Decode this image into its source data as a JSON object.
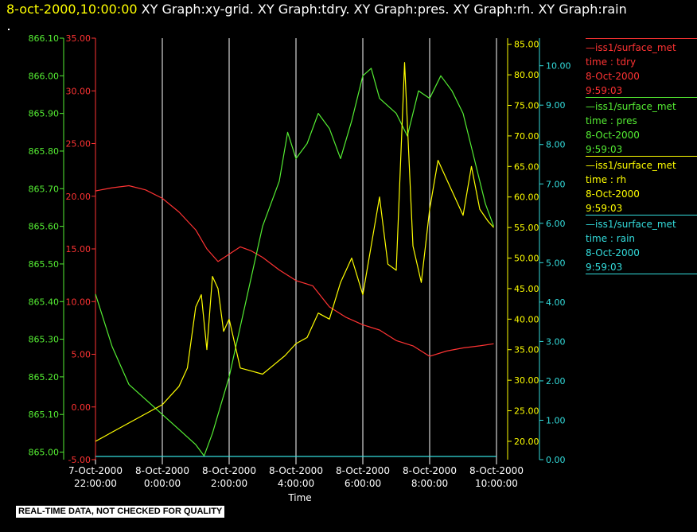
{
  "title": {
    "timestamp": "8-oct-2000,10:00:00",
    "graphs": "XY Graph:xy-grid.  XY Graph:tdry.  XY Graph:pres.  XY Graph:rh.  XY Graph:rain"
  },
  "disclaimer": "REAL-TIME DATA, NOT CHECKED FOR QUALITY",
  "legend": [
    {
      "source": "—iss1/surface_met",
      "var": "time : tdry",
      "date": "8-Oct-2000",
      "time": "9:59:03",
      "color": "#ff3333"
    },
    {
      "source": "—iss1/surface_met",
      "var": "time : pres",
      "date": "8-Oct-2000",
      "time": "9:59:03",
      "color": "#55ee33"
    },
    {
      "source": "—iss1/surface_met",
      "var": "time : rh",
      "date": "8-Oct-2000",
      "time": "9:59:03",
      "color": "#ffff00"
    },
    {
      "source": "—iss1/surface_met",
      "var": "time : rain",
      "date": "8-Oct-2000",
      "time": "9:59:03",
      "color": "#33dddd"
    }
  ],
  "chart_data": {
    "type": "line",
    "xlabel": "Time",
    "x_ticks": [
      [
        "7-Oct-2000",
        "22:00:00"
      ],
      [
        "8-Oct-2000",
        "0:00:00"
      ],
      [
        "8-Oct-2000",
        "2:00:00"
      ],
      [
        "8-Oct-2000",
        "4:00:00"
      ],
      [
        "8-Oct-2000",
        "6:00:00"
      ],
      [
        "8-Oct-2000",
        "8:00:00"
      ],
      [
        "8-Oct-2000",
        "10:00:00"
      ]
    ],
    "xlim": [
      "7-Oct-2000 22:00:00",
      "8-Oct-2000 10:00:00"
    ],
    "grid": "vertical",
    "axes": {
      "pres": {
        "ylim": [
          864.98,
          866.1
        ],
        "ticks": [
          "865.00",
          "865.10",
          "865.20",
          "865.30",
          "865.40",
          "865.50",
          "865.60",
          "865.70",
          "865.80",
          "865.90",
          "866.00",
          "866.10"
        ],
        "color": "#55ee33"
      },
      "tdry": {
        "ylim": [
          -5,
          35
        ],
        "ticks": [
          "-5.00",
          "0.00",
          "5.00",
          "10.00",
          "15.00",
          "20.00",
          "25.00",
          "30.00",
          "35.00"
        ],
        "color": "#ff3333"
      },
      "rh": {
        "ylim": [
          17,
          86
        ],
        "ticks": [
          "20.00",
          "25.00",
          "30.00",
          "35.00",
          "40.00",
          "45.00",
          "50.00",
          "55.00",
          "60.00",
          "65.00",
          "70.00",
          "75.00",
          "80.00",
          "85.00"
        ],
        "color": "#ffff00"
      },
      "rain": {
        "ylim": [
          0,
          10.7
        ],
        "ticks": [
          "0.00",
          "1.00",
          "2.00",
          "3.00",
          "4.00",
          "5.00",
          "6.00",
          "7.00",
          "8.00",
          "9.00",
          "10.00"
        ],
        "color": "#33dddd"
      }
    },
    "series": [
      {
        "name": "tdry",
        "axis": "tdry",
        "color": "#ff3333",
        "x": [
          "7-Oct-2000 22:00",
          "7-Oct-2000 22:30",
          "7-Oct-2000 23:00",
          "7-Oct-2000 23:30",
          "8-Oct-2000 0:00",
          "8-Oct-2000 0:30",
          "8-Oct-2000 1:00",
          "8-Oct-2000 1:20",
          "8-Oct-2000 1:40",
          "8-Oct-2000 2:00",
          "8-Oct-2000 2:20",
          "8-Oct-2000 2:40",
          "8-Oct-2000 3:00",
          "8-Oct-2000 3:30",
          "8-Oct-2000 4:00",
          "8-Oct-2000 4:30",
          "8-Oct-2000 5:00",
          "8-Oct-2000 5:30",
          "8-Oct-2000 6:00",
          "8-Oct-2000 6:30",
          "8-Oct-2000 7:00",
          "8-Oct-2000 7:30",
          "8-Oct-2000 8:00",
          "8-Oct-2000 8:30",
          "8-Oct-2000 9:00",
          "8-Oct-2000 9:30",
          "8-Oct-2000 9:55"
        ],
        "y": [
          20.5,
          20.8,
          21.0,
          20.6,
          19.8,
          18.5,
          16.8,
          15.0,
          13.8,
          14.5,
          15.2,
          14.8,
          14.2,
          13.0,
          12.0,
          11.5,
          9.5,
          8.5,
          7.8,
          7.3,
          6.3,
          5.8,
          4.8,
          5.3,
          5.6,
          5.8,
          6.0
        ]
      },
      {
        "name": "pres",
        "axis": "pres",
        "color": "#55ee33",
        "x": [
          "7-Oct-2000 22:00",
          "7-Oct-2000 22:15",
          "7-Oct-2000 22:30",
          "7-Oct-2000 23:00",
          "7-Oct-2000 23:30",
          "8-Oct-2000 0:00",
          "8-Oct-2000 0:30",
          "8-Oct-2000 1:00",
          "8-Oct-2000 1:15",
          "8-Oct-2000 1:30",
          "8-Oct-2000 2:00",
          "8-Oct-2000 2:30",
          "8-Oct-2000 3:00",
          "8-Oct-2000 3:30",
          "8-Oct-2000 3:45",
          "8-Oct-2000 4:00",
          "8-Oct-2000 4:20",
          "8-Oct-2000 4:40",
          "8-Oct-2000 5:00",
          "8-Oct-2000 5:20",
          "8-Oct-2000 5:40",
          "8-Oct-2000 6:00",
          "8-Oct-2000 6:15",
          "8-Oct-2000 6:30",
          "8-Oct-2000 7:00",
          "8-Oct-2000 7:20",
          "8-Oct-2000 7:40",
          "8-Oct-2000 8:00",
          "8-Oct-2000 8:20",
          "8-Oct-2000 8:40",
          "8-Oct-2000 9:00",
          "8-Oct-2000 9:20",
          "8-Oct-2000 9:40",
          "8-Oct-2000 9:55"
        ],
        "y": [
          865.42,
          865.35,
          865.28,
          865.18,
          865.14,
          865.1,
          865.06,
          865.02,
          864.99,
          865.05,
          865.2,
          865.4,
          865.6,
          865.72,
          865.85,
          865.78,
          865.82,
          865.9,
          865.86,
          865.78,
          865.88,
          866.0,
          866.02,
          865.94,
          865.9,
          865.84,
          865.96,
          865.94,
          866.0,
          865.96,
          865.9,
          865.78,
          865.66,
          865.6
        ]
      },
      {
        "name": "rh",
        "axis": "rh",
        "color": "#ffff00",
        "x": [
          "7-Oct-2000 22:00",
          "7-Oct-2000 22:30",
          "7-Oct-2000 23:00",
          "7-Oct-2000 23:30",
          "8-Oct-2000 0:00",
          "8-Oct-2000 0:30",
          "8-Oct-2000 0:45",
          "8-Oct-2000 1:00",
          "8-Oct-2000 1:10",
          "8-Oct-2000 1:20",
          "8-Oct-2000 1:30",
          "8-Oct-2000 1:40",
          "8-Oct-2000 1:50",
          "8-Oct-2000 2:00",
          "8-Oct-2000 2:20",
          "8-Oct-2000 2:40",
          "8-Oct-2000 3:00",
          "8-Oct-2000 3:20",
          "8-Oct-2000 3:40",
          "8-Oct-2000 4:00",
          "8-Oct-2000 4:20",
          "8-Oct-2000 4:40",
          "8-Oct-2000 5:00",
          "8-Oct-2000 5:20",
          "8-Oct-2000 5:40",
          "8-Oct-2000 6:00",
          "8-Oct-2000 6:15",
          "8-Oct-2000 6:30",
          "8-Oct-2000 6:45",
          "8-Oct-2000 7:00",
          "8-Oct-2000 7:15",
          "8-Oct-2000 7:30",
          "8-Oct-2000 7:45",
          "8-Oct-2000 8:00",
          "8-Oct-2000 8:15",
          "8-Oct-2000 8:30",
          "8-Oct-2000 8:45",
          "8-Oct-2000 9:00",
          "8-Oct-2000 9:15",
          "8-Oct-2000 9:30",
          "8-Oct-2000 9:45",
          "8-Oct-2000 9:55"
        ],
        "y": [
          20.0,
          21.5,
          23.0,
          24.5,
          26.0,
          29.0,
          32.0,
          42.0,
          44.0,
          35.0,
          47.0,
          45.0,
          38.0,
          40.0,
          32.0,
          31.5,
          31.0,
          32.5,
          34.0,
          36.0,
          37.0,
          41.0,
          40.0,
          46.0,
          50.0,
          44.0,
          52.0,
          60.0,
          49.0,
          48.0,
          82.0,
          52.0,
          46.0,
          58.0,
          66.0,
          63.0,
          60.0,
          57.0,
          65.0,
          58.0,
          56.0,
          55.0
        ]
      },
      {
        "name": "rain",
        "axis": "rain",
        "color": "#33dddd",
        "x": [
          "7-Oct-2000 22:00",
          "8-Oct-2000 10:00"
        ],
        "y": [
          0.0,
          0.0
        ]
      }
    ]
  }
}
